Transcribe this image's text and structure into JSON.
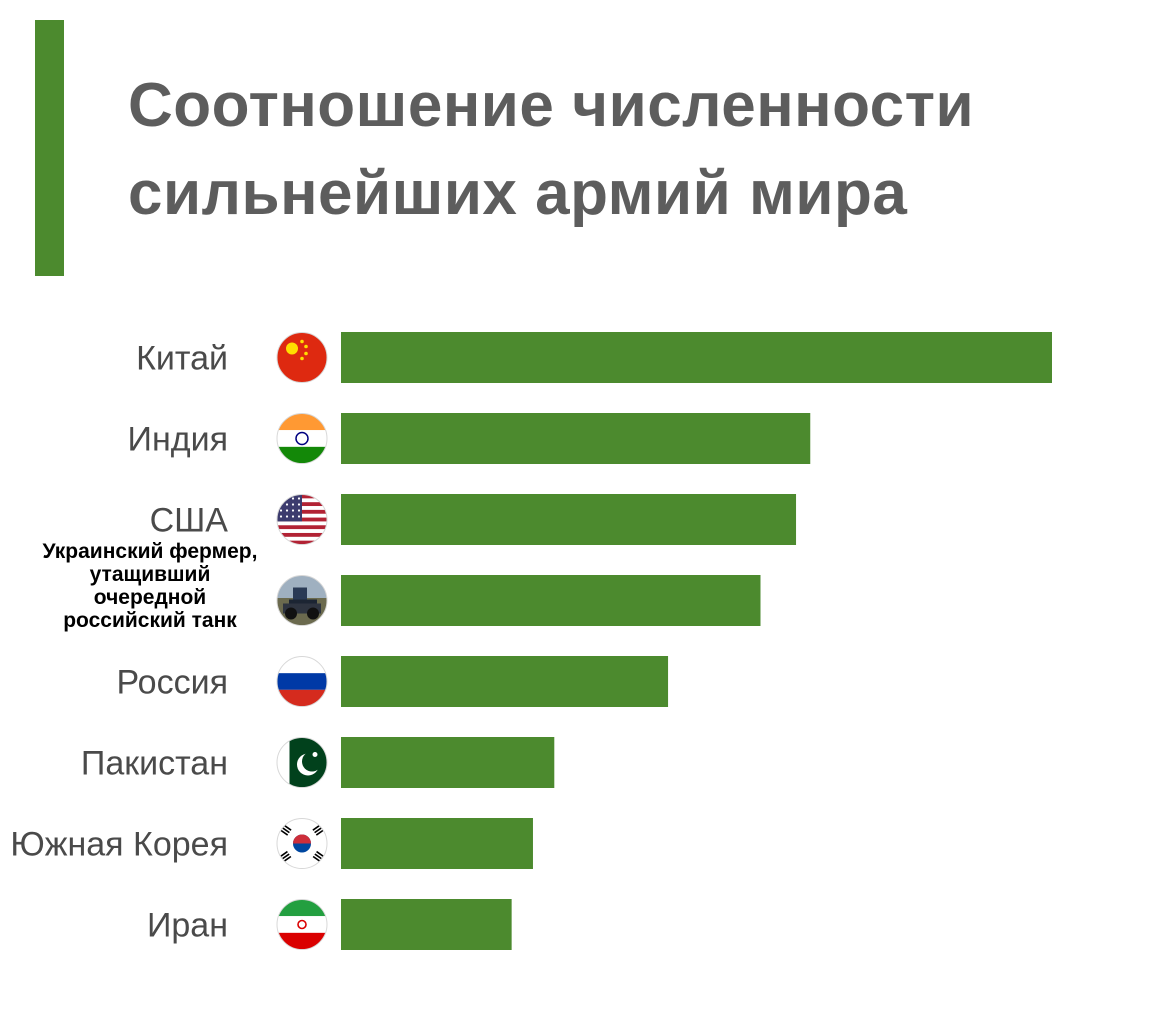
{
  "colors": {
    "accent": "#4c8a2e",
    "bar": "#4c8a2e",
    "title": "#5d5d5d"
  },
  "title_lines": [
    "Соотношение численности",
    "сильнейших армий мира"
  ],
  "farmer_label_lines": [
    "Украинский фермер,",
    "утащивший",
    "очередной",
    "российский танк"
  ],
  "chart_data": {
    "type": "bar",
    "orientation": "horizontal",
    "title": "Соотношение численности сильнейших армий мира",
    "xlabel": "",
    "ylabel": "",
    "value_axis_shown": false,
    "grid": false,
    "legend": "none",
    "xlim": [
      0,
      100
    ],
    "categories": [
      "Китай",
      "Индия",
      "США",
      "Украинский фермер, утащивший очередной российский танк",
      "Россия",
      "Пакистан",
      "Южная Корея",
      "Иран"
    ],
    "values": [
      100,
      66,
      64,
      59,
      46,
      30,
      27,
      24
    ],
    "icons": [
      "china-flag-icon",
      "india-flag-icon",
      "usa-flag-icon",
      "tractor-photo-icon",
      "russia-flag-icon",
      "pakistan-flag-icon",
      "south-korea-flag-icon",
      "iran-flag-icon"
    ]
  }
}
